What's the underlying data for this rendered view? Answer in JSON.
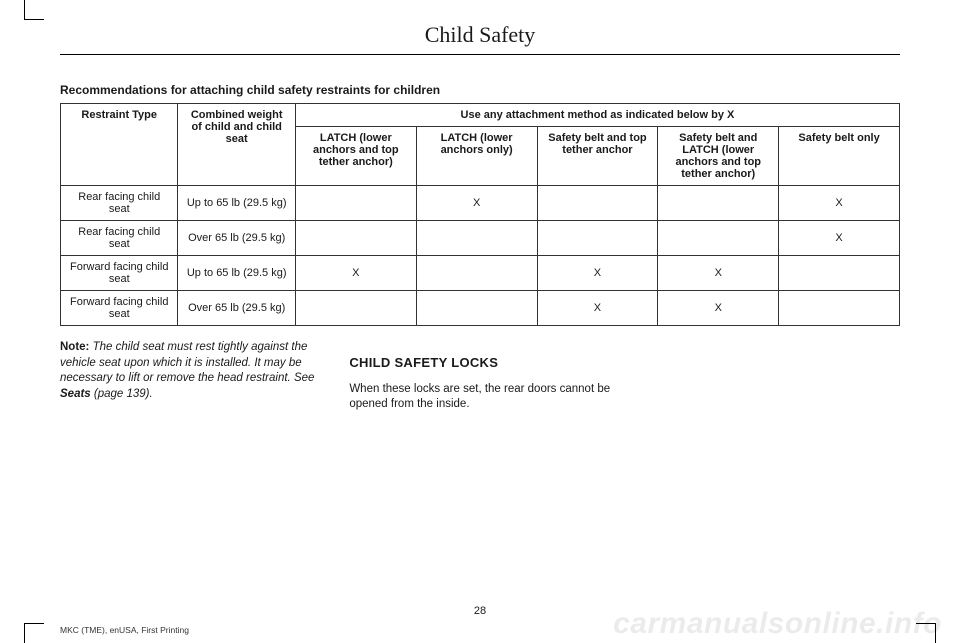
{
  "chapter_title": "Child Safety",
  "table_caption": "Recommendations for attaching child safety restraints for children",
  "table": {
    "header_row1_span": "Use any attachment method as indicated below by X",
    "col_headers": {
      "restraint": "Restraint Type",
      "weight": "Combined weight of child and child seat",
      "c1": "LATCH (lower anchors and top tether anchor)",
      "c2": "LATCH (lower anchors only)",
      "c3": "Safety belt and top tether anchor",
      "c4": "Safety belt and LATCH (lower anchors and top tether anchor)",
      "c5": "Safety belt only"
    },
    "rows": [
      {
        "restraint": "Rear facing child seat",
        "weight": "Up to 65 lb (29.5 kg)",
        "c1": "",
        "c2": "X",
        "c3": "",
        "c4": "",
        "c5": "X"
      },
      {
        "restraint": "Rear facing child seat",
        "weight": "Over 65 lb (29.5 kg)",
        "c1": "",
        "c2": "",
        "c3": "",
        "c4": "",
        "c5": "X"
      },
      {
        "restraint": "Forward facing child seat",
        "weight": "Up to 65 lb (29.5 kg)",
        "c1": "X",
        "c2": "",
        "c3": "X",
        "c4": "X",
        "c5": ""
      },
      {
        "restraint": "Forward facing child seat",
        "weight": "Over 65 lb (29.5 kg)",
        "c1": "",
        "c2": "",
        "c3": "X",
        "c4": "X",
        "c5": ""
      }
    ]
  },
  "note": {
    "label": "Note:",
    "body_italic_1": " The child seat must rest tightly against the vehicle seat upon which it is installed. It may be necessary to lift or remove the head restraint.  See ",
    "seats_bold": "Seats",
    "body_italic_2": " (page 139)."
  },
  "section_heading": "CHILD SAFETY LOCKS",
  "section_body": "When these locks are set, the rear doors cannot be opened from the inside.",
  "page_number": "28",
  "footer_meta": "MKC (TME), enUSA, First Printing",
  "watermark": "carmanualsonline.info"
}
